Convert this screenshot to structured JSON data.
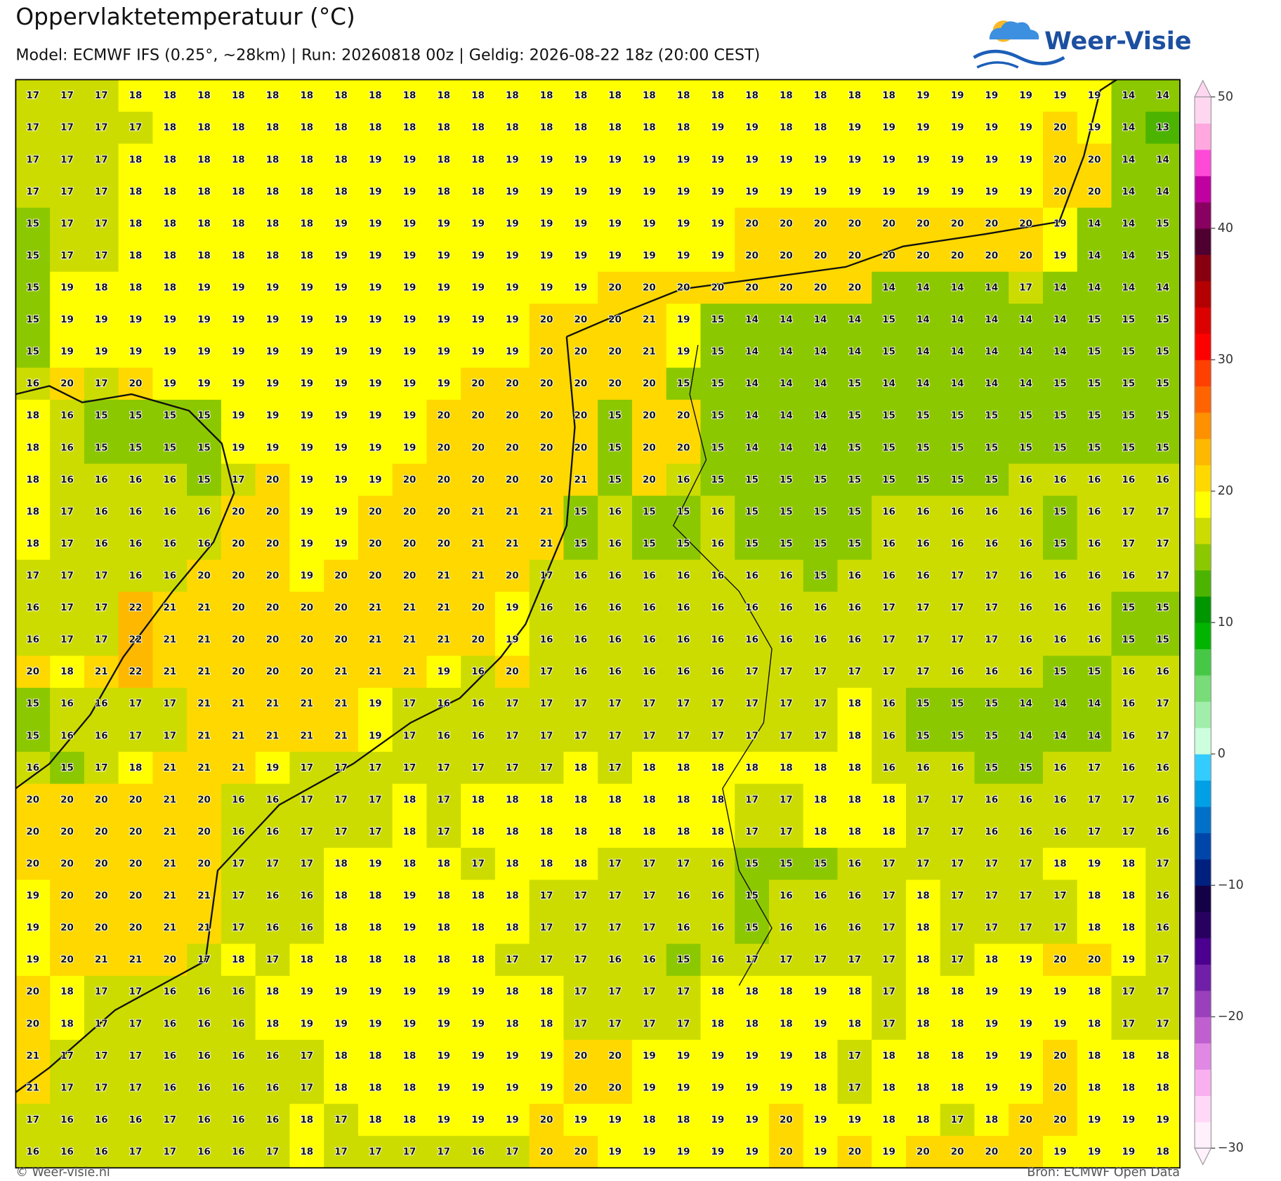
{
  "map": {
    "title": "Oppervlaktetemperatuur (°C)",
    "subtitle": "Model: ECMWF IFS (0.25°, ~28km)  |  Run: 20260818 00z  |  Geldig: 2026-08-22 18z (20:00 CEST)",
    "logo": "Weer-Visie",
    "footer_left": "© Weer-visie.nl",
    "footer_right": "Bron: ECMWF Open Data",
    "grid": [
      [
        17,
        17,
        17,
        18,
        18,
        18,
        18,
        18,
        18,
        18,
        18,
        18,
        18,
        18,
        18,
        18,
        18,
        18,
        18,
        18,
        18,
        18,
        18,
        18,
        18,
        18,
        19,
        19,
        19,
        19,
        19,
        19,
        14,
        14
      ],
      [
        17,
        17,
        17,
        17,
        18,
        18,
        18,
        18,
        18,
        18,
        18,
        18,
        18,
        18,
        18,
        18,
        18,
        18,
        18,
        18,
        19,
        19,
        18,
        18,
        19,
        19,
        19,
        19,
        19,
        19,
        20,
        19,
        14,
        13
      ],
      [
        17,
        17,
        17,
        18,
        18,
        18,
        18,
        18,
        18,
        18,
        19,
        19,
        18,
        18,
        19,
        19,
        19,
        19,
        19,
        19,
        19,
        19,
        19,
        19,
        19,
        19,
        19,
        19,
        19,
        19,
        20,
        20,
        14,
        14
      ],
      [
        17,
        17,
        17,
        18,
        18,
        18,
        18,
        18,
        18,
        18,
        19,
        19,
        18,
        18,
        19,
        19,
        19,
        19,
        19,
        19,
        19,
        19,
        19,
        19,
        19,
        19,
        19,
        19,
        19,
        19,
        20,
        20,
        14,
        14
      ],
      [
        15,
        17,
        17,
        18,
        18,
        18,
        18,
        18,
        18,
        19,
        19,
        19,
        19,
        19,
        19,
        19,
        19,
        19,
        19,
        19,
        19,
        20,
        20,
        20,
        20,
        20,
        20,
        20,
        20,
        20,
        19,
        14,
        14,
        15
      ],
      [
        15,
        17,
        17,
        18,
        18,
        18,
        18,
        18,
        18,
        19,
        19,
        19,
        19,
        19,
        19,
        19,
        19,
        19,
        19,
        19,
        19,
        20,
        20,
        20,
        20,
        20,
        20,
        20,
        20,
        20,
        19,
        14,
        14,
        15
      ],
      [
        15,
        19,
        18,
        18,
        18,
        19,
        19,
        19,
        19,
        19,
        19,
        19,
        19,
        19,
        19,
        19,
        19,
        20,
        20,
        20,
        20,
        20,
        20,
        20,
        20,
        14,
        14,
        14,
        14,
        17,
        14,
        14,
        14,
        14
      ],
      [
        15,
        19,
        19,
        19,
        19,
        19,
        19,
        19,
        19,
        19,
        19,
        19,
        19,
        19,
        19,
        20,
        20,
        20,
        21,
        19,
        15,
        14,
        14,
        14,
        14,
        15,
        14,
        14,
        14,
        14,
        14,
        15,
        15,
        15
      ],
      [
        15,
        19,
        19,
        19,
        19,
        19,
        19,
        19,
        19,
        19,
        19,
        19,
        19,
        19,
        19,
        20,
        20,
        20,
        21,
        19,
        15,
        14,
        14,
        14,
        14,
        15,
        14,
        14,
        14,
        14,
        14,
        15,
        15,
        15
      ],
      [
        16,
        20,
        17,
        20,
        19,
        19,
        19,
        19,
        19,
        19,
        19,
        19,
        19,
        20,
        20,
        20,
        20,
        20,
        20,
        15,
        15,
        14,
        14,
        14,
        15,
        14,
        14,
        14,
        14,
        14,
        15,
        15,
        15,
        15
      ],
      [
        18,
        16,
        15,
        15,
        15,
        15,
        19,
        19,
        19,
        19,
        19,
        19,
        20,
        20,
        20,
        20,
        20,
        15,
        20,
        20,
        15,
        14,
        14,
        14,
        15,
        15,
        15,
        15,
        15,
        15,
        15,
        15,
        15,
        15
      ],
      [
        18,
        16,
        15,
        15,
        15,
        15,
        19,
        19,
        19,
        19,
        19,
        19,
        20,
        20,
        20,
        20,
        20,
        15,
        20,
        20,
        15,
        14,
        14,
        14,
        15,
        15,
        15,
        15,
        15,
        15,
        15,
        15,
        15,
        15
      ],
      [
        18,
        16,
        16,
        16,
        16,
        15,
        17,
        20,
        19,
        19,
        19,
        20,
        20,
        20,
        20,
        20,
        21,
        15,
        20,
        16,
        15,
        15,
        15,
        15,
        15,
        15,
        15,
        15,
        15,
        16,
        16,
        16,
        16,
        16
      ],
      [
        18,
        17,
        16,
        16,
        16,
        16,
        20,
        20,
        19,
        19,
        20,
        20,
        20,
        21,
        21,
        21,
        15,
        16,
        15,
        15,
        16,
        15,
        15,
        15,
        15,
        16,
        16,
        16,
        16,
        16,
        15,
        16,
        17,
        17
      ],
      [
        18,
        17,
        16,
        16,
        16,
        16,
        20,
        20,
        19,
        19,
        20,
        20,
        20,
        21,
        21,
        21,
        15,
        16,
        15,
        15,
        16,
        15,
        15,
        15,
        15,
        16,
        16,
        16,
        16,
        16,
        15,
        16,
        17,
        17
      ],
      [
        17,
        17,
        17,
        16,
        16,
        20,
        20,
        20,
        19,
        20,
        20,
        20,
        21,
        21,
        20,
        17,
        16,
        16,
        16,
        16,
        16,
        16,
        16,
        15,
        16,
        16,
        16,
        17,
        17,
        16,
        16,
        16,
        16,
        17
      ],
      [
        16,
        17,
        17,
        22,
        21,
        21,
        20,
        20,
        20,
        20,
        21,
        21,
        21,
        20,
        19,
        16,
        16,
        16,
        16,
        16,
        16,
        16,
        16,
        16,
        16,
        17,
        17,
        17,
        17,
        16,
        16,
        16,
        15,
        15
      ],
      [
        16,
        17,
        17,
        22,
        21,
        21,
        20,
        20,
        20,
        20,
        21,
        21,
        21,
        20,
        19,
        16,
        16,
        16,
        16,
        16,
        16,
        16,
        16,
        16,
        16,
        17,
        17,
        17,
        17,
        16,
        16,
        16,
        15,
        15
      ],
      [
        20,
        18,
        21,
        22,
        21,
        21,
        20,
        20,
        20,
        21,
        21,
        21,
        19,
        16,
        20,
        17,
        16,
        16,
        16,
        16,
        16,
        17,
        17,
        17,
        17,
        17,
        17,
        16,
        16,
        16,
        15,
        15,
        16,
        16
      ],
      [
        15,
        16,
        16,
        17,
        17,
        21,
        21,
        21,
        21,
        21,
        19,
        17,
        16,
        16,
        17,
        17,
        17,
        17,
        17,
        17,
        17,
        17,
        17,
        17,
        18,
        16,
        15,
        15,
        15,
        14,
        14,
        14,
        16,
        17
      ],
      [
        15,
        16,
        16,
        17,
        17,
        21,
        21,
        21,
        21,
        21,
        19,
        17,
        16,
        16,
        17,
        17,
        17,
        17,
        17,
        17,
        17,
        17,
        17,
        17,
        18,
        16,
        15,
        15,
        15,
        14,
        14,
        14,
        16,
        17
      ],
      [
        16,
        15,
        17,
        18,
        21,
        21,
        21,
        19,
        17,
        17,
        17,
        17,
        17,
        17,
        17,
        17,
        18,
        17,
        18,
        18,
        18,
        18,
        18,
        18,
        18,
        16,
        16,
        16,
        15,
        15,
        16,
        17,
        16,
        16
      ],
      [
        20,
        20,
        20,
        20,
        21,
        20,
        16,
        16,
        17,
        17,
        17,
        18,
        17,
        18,
        18,
        18,
        18,
        18,
        18,
        18,
        18,
        17,
        17,
        18,
        18,
        18,
        17,
        17,
        16,
        16,
        16,
        17,
        17,
        16
      ],
      [
        20,
        20,
        20,
        20,
        21,
        20,
        16,
        16,
        17,
        17,
        17,
        18,
        17,
        18,
        18,
        18,
        18,
        18,
        18,
        18,
        18,
        17,
        17,
        18,
        18,
        18,
        17,
        17,
        16,
        16,
        16,
        17,
        17,
        16
      ],
      [
        20,
        20,
        20,
        20,
        21,
        20,
        17,
        17,
        17,
        18,
        19,
        18,
        18,
        17,
        18,
        18,
        18,
        17,
        17,
        17,
        16,
        15,
        15,
        15,
        16,
        17,
        17,
        17,
        17,
        17,
        18,
        19,
        18,
        17
      ],
      [
        19,
        20,
        20,
        20,
        21,
        21,
        17,
        16,
        16,
        18,
        18,
        19,
        18,
        18,
        18,
        17,
        17,
        17,
        17,
        16,
        16,
        15,
        16,
        16,
        16,
        17,
        18,
        17,
        17,
        17,
        17,
        18,
        18,
        16
      ],
      [
        19,
        20,
        20,
        20,
        21,
        21,
        17,
        16,
        16,
        18,
        18,
        19,
        18,
        18,
        18,
        17,
        17,
        17,
        17,
        16,
        16,
        15,
        16,
        16,
        16,
        17,
        18,
        17,
        17,
        17,
        17,
        18,
        18,
        16
      ],
      [
        19,
        20,
        21,
        21,
        20,
        17,
        18,
        17,
        18,
        18,
        18,
        18,
        18,
        18,
        17,
        17,
        17,
        16,
        16,
        15,
        16,
        17,
        17,
        17,
        17,
        17,
        18,
        17,
        18,
        19,
        20,
        20,
        19,
        17
      ],
      [
        20,
        18,
        17,
        17,
        16,
        16,
        16,
        18,
        19,
        19,
        19,
        19,
        19,
        19,
        18,
        18,
        17,
        17,
        17,
        17,
        18,
        18,
        18,
        19,
        18,
        17,
        18,
        18,
        19,
        19,
        19,
        18,
        17,
        17
      ],
      [
        20,
        18,
        17,
        17,
        16,
        16,
        16,
        18,
        19,
        19,
        19,
        19,
        19,
        19,
        18,
        18,
        17,
        17,
        17,
        17,
        18,
        18,
        18,
        19,
        18,
        17,
        18,
        18,
        19,
        19,
        19,
        18,
        17,
        17
      ],
      [
        21,
        17,
        17,
        17,
        16,
        16,
        16,
        16,
        17,
        18,
        18,
        18,
        19,
        19,
        19,
        19,
        20,
        20,
        19,
        19,
        19,
        19,
        19,
        18,
        17,
        18,
        18,
        18,
        19,
        19,
        20,
        18,
        18,
        18
      ],
      [
        21,
        17,
        17,
        17,
        16,
        16,
        16,
        16,
        17,
        18,
        18,
        18,
        19,
        19,
        19,
        19,
        20,
        20,
        19,
        19,
        19,
        19,
        19,
        18,
        17,
        18,
        18,
        18,
        19,
        19,
        20,
        18,
        18,
        18
      ],
      [
        17,
        16,
        16,
        16,
        17,
        16,
        16,
        16,
        18,
        17,
        18,
        18,
        19,
        19,
        19,
        20,
        19,
        19,
        18,
        18,
        19,
        19,
        20,
        19,
        19,
        18,
        18,
        17,
        18,
        20,
        20,
        19,
        19,
        19
      ],
      [
        16,
        16,
        16,
        17,
        17,
        16,
        16,
        17,
        18,
        17,
        17,
        17,
        17,
        16,
        17,
        20,
        20,
        19,
        19,
        19,
        19,
        19,
        20,
        19,
        20,
        19,
        20,
        20,
        20,
        20,
        19,
        19,
        19,
        18
      ]
    ],
    "colorbar": {
      "lim": [
        -30,
        50
      ],
      "step": 2,
      "ticks": [
        50,
        40,
        30,
        20,
        10,
        0,
        {
          "value": -10,
          "label": "−10"
        },
        {
          "value": -20,
          "label": "−20"
        },
        {
          "value": -30,
          "label": "−30"
        }
      ],
      "colors": [
        "#fff0fc",
        "#ffd8f8",
        "#f8b0f0",
        "#e088e4",
        "#c060d0",
        "#9a40bc",
        "#7020a8",
        "#4b0090",
        "#280060",
        "#140046",
        "#002080",
        "#0046aa",
        "#0070c8",
        "#00a0e6",
        "#33ccff",
        "#ccffdd",
        "#a0eeaa",
        "#78dc78",
        "#46c846",
        "#00b400",
        "#009600",
        "#4cb400",
        "#8cc800",
        "#cddc00",
        "#ffff00",
        "#ffd800",
        "#ffb800",
        "#ff9000",
        "#ff6400",
        "#ff4000",
        "#ff0000",
        "#dd0000",
        "#b40000",
        "#880010",
        "#500030",
        "#880060",
        "#c000a0",
        "#ff4ad8",
        "#ffa8e0",
        "#ffd6f0"
      ]
    }
  }
}
